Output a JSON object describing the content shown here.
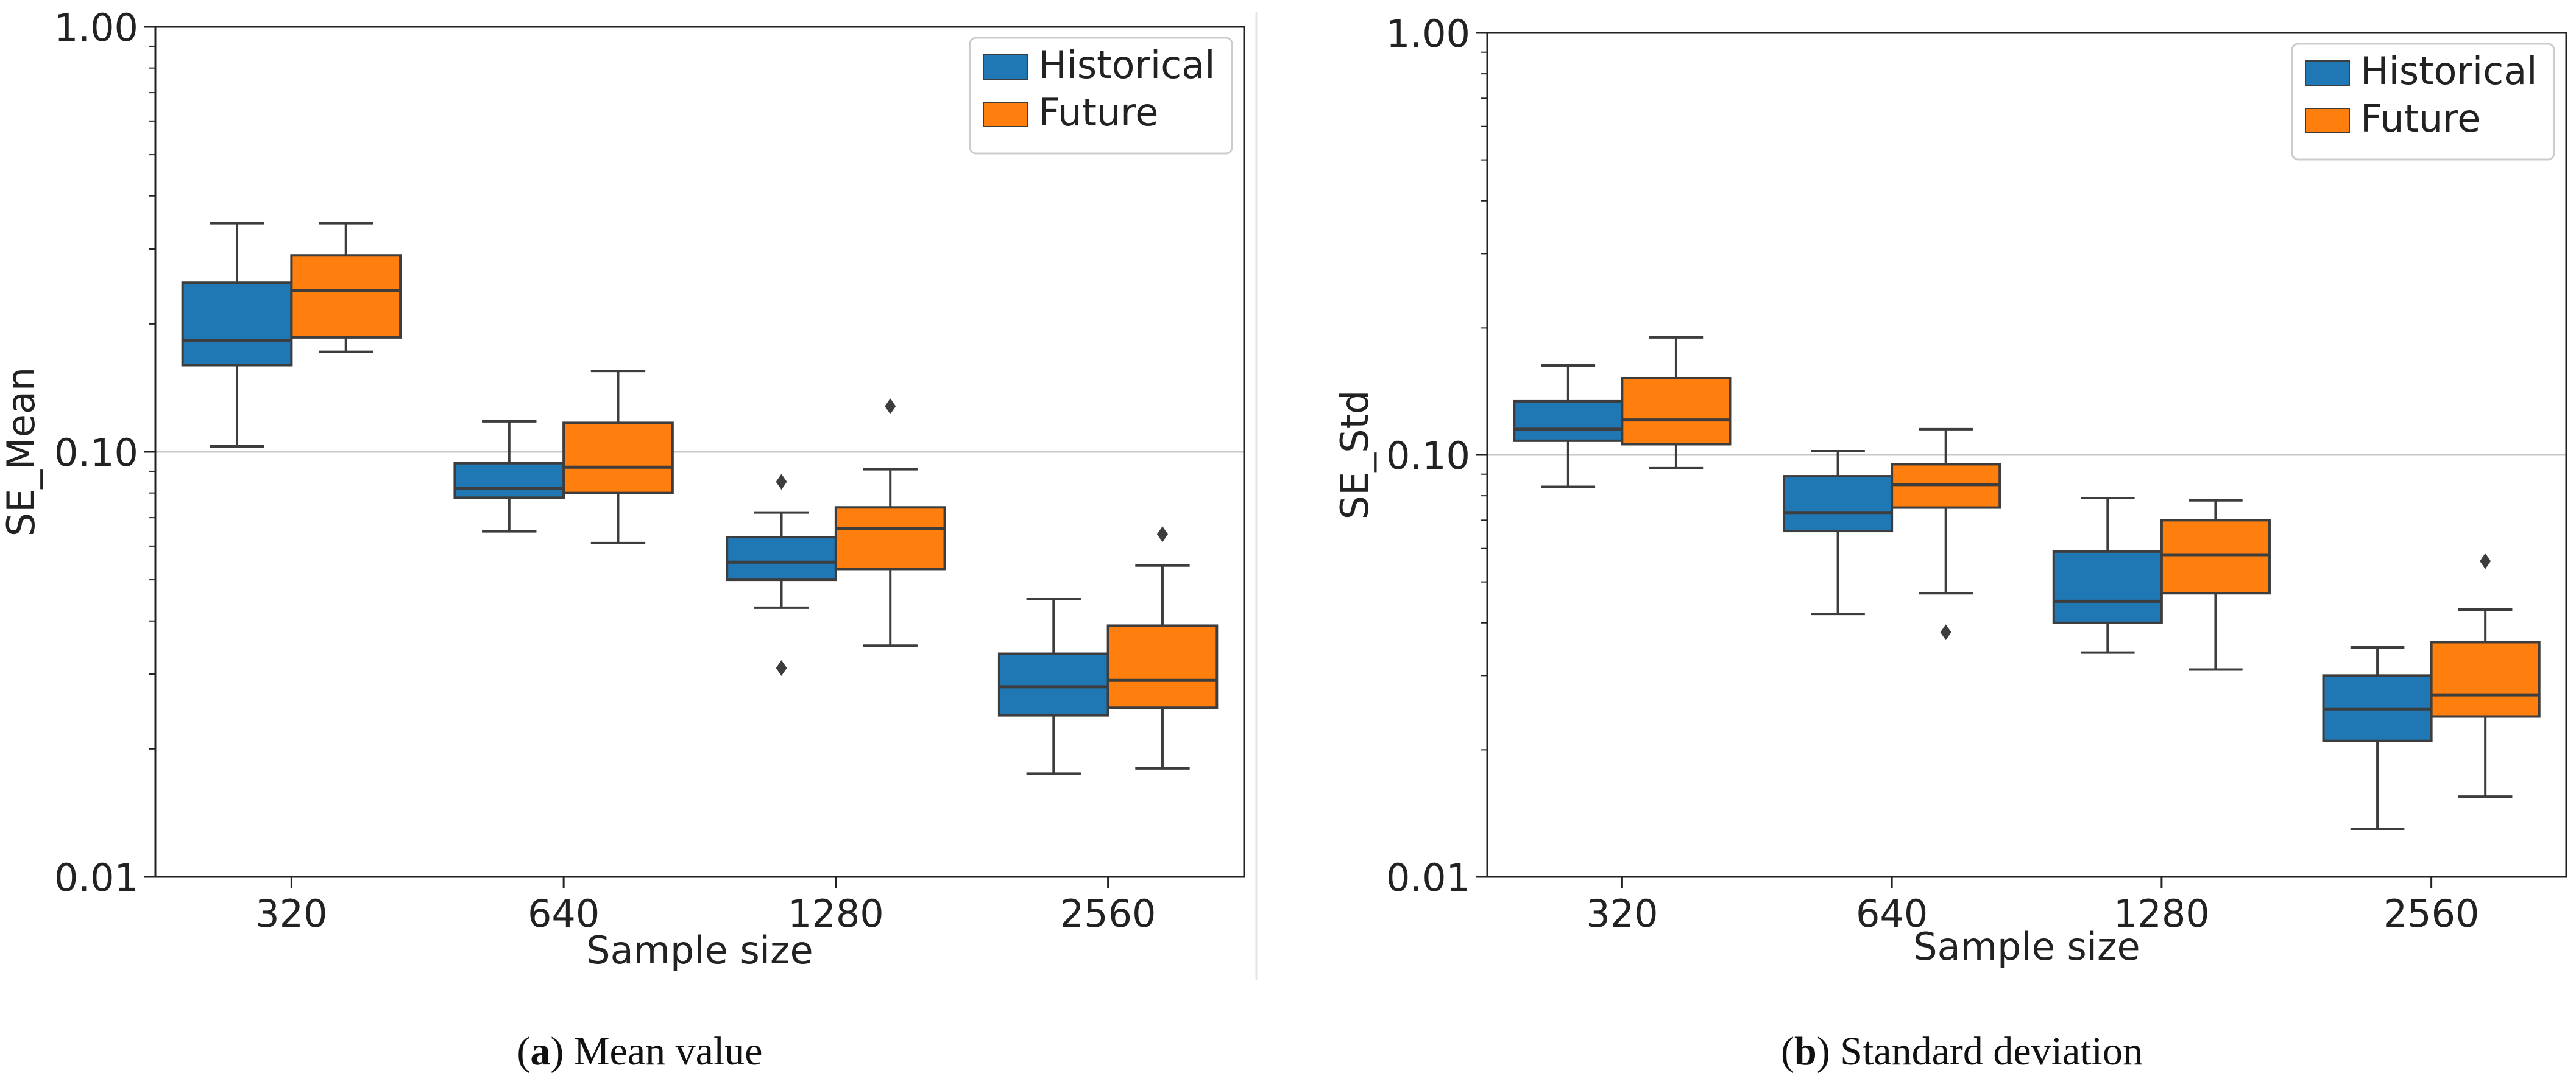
{
  "chart_data": [
    {
      "type": "boxplot",
      "caption_letter": "a",
      "caption_text": "Mean value",
      "ylabel": "SE_Mean",
      "xlabel": "Sample size",
      "yscale": "log",
      "ylim": [
        0.01,
        1.0
      ],
      "ytick_values": [
        0.01,
        0.1,
        1.0
      ],
      "ytick_labels": [
        "0.01",
        "0.10",
        "1.00"
      ],
      "reference_line": 0.1,
      "categories": [
        "320",
        "640",
        "1280",
        "2560"
      ],
      "legend": {
        "position": "top-right",
        "entries": [
          "Historical",
          "Future"
        ]
      },
      "series": [
        {
          "name": "Historical",
          "color": "#1f77b4",
          "boxes": [
            {
              "whisker_low": 0.103,
              "q1": 0.16,
              "median": 0.183,
              "q3": 0.25,
              "whisker_high": 0.345,
              "outliers": []
            },
            {
              "whisker_low": 0.065,
              "q1": 0.078,
              "median": 0.082,
              "q3": 0.094,
              "whisker_high": 0.118,
              "outliers": []
            },
            {
              "whisker_low": 0.043,
              "q1": 0.05,
              "median": 0.055,
              "q3": 0.063,
              "whisker_high": 0.072,
              "outliers": [
                0.085,
                0.031
              ]
            },
            {
              "whisker_low": 0.0175,
              "q1": 0.024,
              "median": 0.028,
              "q3": 0.0335,
              "whisker_high": 0.045,
              "outliers": []
            }
          ]
        },
        {
          "name": "Future",
          "color": "#ff7f0e",
          "boxes": [
            {
              "whisker_low": 0.172,
              "q1": 0.186,
              "median": 0.24,
              "q3": 0.29,
              "whisker_high": 0.345,
              "outliers": []
            },
            {
              "whisker_low": 0.061,
              "q1": 0.08,
              "median": 0.092,
              "q3": 0.117,
              "whisker_high": 0.155,
              "outliers": []
            },
            {
              "whisker_low": 0.035,
              "q1": 0.053,
              "median": 0.066,
              "q3": 0.074,
              "whisker_high": 0.091,
              "outliers": [
                0.128
              ]
            },
            {
              "whisker_low": 0.018,
              "q1": 0.025,
              "median": 0.029,
              "q3": 0.039,
              "whisker_high": 0.054,
              "outliers": [
                0.064
              ]
            }
          ]
        }
      ]
    },
    {
      "type": "boxplot",
      "caption_letter": "b",
      "caption_text": "Standard deviation",
      "ylabel": "SE_Std",
      "xlabel": "Sample size",
      "yscale": "log",
      "ylim": [
        0.01,
        1.0
      ],
      "ytick_values": [
        0.01,
        0.1,
        1.0
      ],
      "ytick_labels": [
        "0.01",
        "0.10",
        "1.00"
      ],
      "reference_line": 0.1,
      "categories": [
        "320",
        "640",
        "1280",
        "2560"
      ],
      "legend": {
        "position": "top-right",
        "entries": [
          "Historical",
          "Future"
        ]
      },
      "series": [
        {
          "name": "Historical",
          "color": "#1f77b4",
          "boxes": [
            {
              "whisker_low": 0.084,
              "q1": 0.108,
              "median": 0.115,
              "q3": 0.134,
              "whisker_high": 0.163,
              "outliers": []
            },
            {
              "whisker_low": 0.042,
              "q1": 0.066,
              "median": 0.073,
              "q3": 0.089,
              "whisker_high": 0.102,
              "outliers": []
            },
            {
              "whisker_low": 0.034,
              "q1": 0.04,
              "median": 0.045,
              "q3": 0.059,
              "whisker_high": 0.079,
              "outliers": []
            },
            {
              "whisker_low": 0.013,
              "q1": 0.021,
              "median": 0.025,
              "q3": 0.03,
              "whisker_high": 0.035,
              "outliers": []
            }
          ]
        },
        {
          "name": "Future",
          "color": "#ff7f0e",
          "boxes": [
            {
              "whisker_low": 0.093,
              "q1": 0.106,
              "median": 0.121,
              "q3": 0.152,
              "whisker_high": 0.19,
              "outliers": []
            },
            {
              "whisker_low": 0.047,
              "q1": 0.075,
              "median": 0.085,
              "q3": 0.095,
              "whisker_high": 0.115,
              "outliers": [
                0.038
              ]
            },
            {
              "whisker_low": 0.031,
              "q1": 0.047,
              "median": 0.058,
              "q3": 0.07,
              "whisker_high": 0.078,
              "outliers": []
            },
            {
              "whisker_low": 0.0155,
              "q1": 0.024,
              "median": 0.027,
              "q3": 0.036,
              "whisker_high": 0.043,
              "outliers": [
                0.056
              ]
            }
          ]
        }
      ]
    }
  ]
}
